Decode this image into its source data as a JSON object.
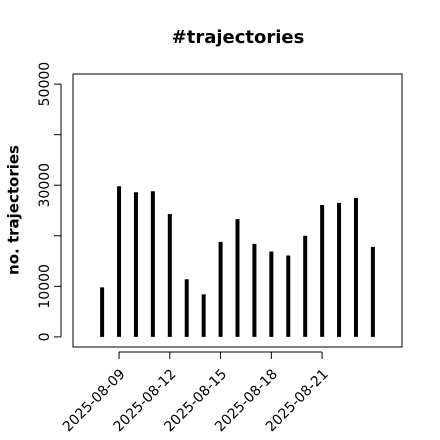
{
  "chart_data": {
    "type": "histlike",
    "title": "#trajectories",
    "y_label": "no. trajectories",
    "x": [
      "2025-08-08",
      "2025-08-09",
      "2025-08-10",
      "2025-08-11",
      "2025-08-12",
      "2025-08-13",
      "2025-08-14",
      "2025-08-15",
      "2025-08-16",
      "2025-08-17",
      "2025-08-18",
      "2025-08-19",
      "2025-08-20",
      "2025-08-21",
      "2025-08-22",
      "2025-08-23",
      "2025-08-24"
    ],
    "values": [
      9800,
      29800,
      28600,
      28800,
      24300,
      11400,
      8400,
      18800,
      23300,
      18400,
      16900,
      16100,
      20000,
      26100,
      26500,
      27500,
      17800
    ],
    "color": "#000000",
    "xlim": [
      "2025-08-07",
      "2025-08-25"
    ],
    "xticks": [
      "2025-08-09",
      "2025-08-12",
      "2025-08-15",
      "2025-08-18",
      "2025-08-21"
    ],
    "ylim": [
      0,
      50000
    ],
    "yticks": [
      0,
      10000,
      30000,
      50000
    ],
    "minor_yticks": [
      20000,
      40000
    ]
  }
}
